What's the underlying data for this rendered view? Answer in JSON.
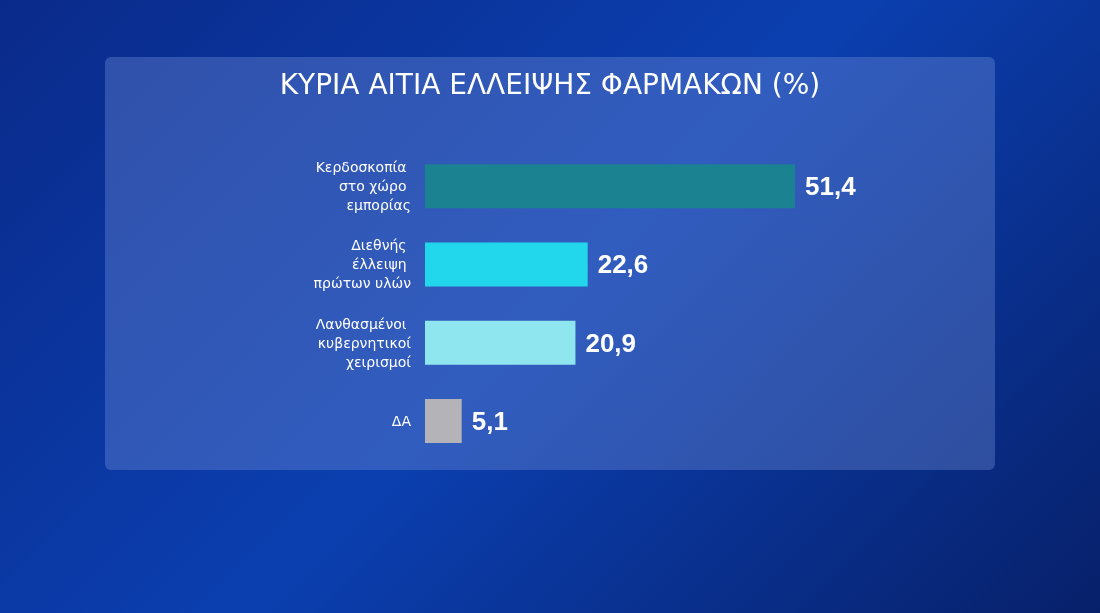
{
  "chart_data": {
    "type": "bar",
    "orientation": "horizontal",
    "title": "ΚΥΡΙΑ ΑΙΤΙΑ ΕΛΛΕΙΨΗΣ ΦΑΡΜΑΚΩΝ (%)",
    "categories": [
      "Κερδοσκοπία στο χώρο εμπορίας",
      "Διεθνής έλλειψη πρώτων υλών",
      "Λανθασμένοι κυβερνητικοί χειρισμοί",
      "ΔΑ"
    ],
    "values": [
      51.4,
      22.6,
      20.9,
      5.1
    ],
    "colors": [
      "#1a8291",
      "#22d6ec",
      "#8fe6ef",
      "#b4b4b8"
    ],
    "value_labels": [
      "51,4",
      "22,6",
      "20,9",
      "5,1"
    ]
  }
}
